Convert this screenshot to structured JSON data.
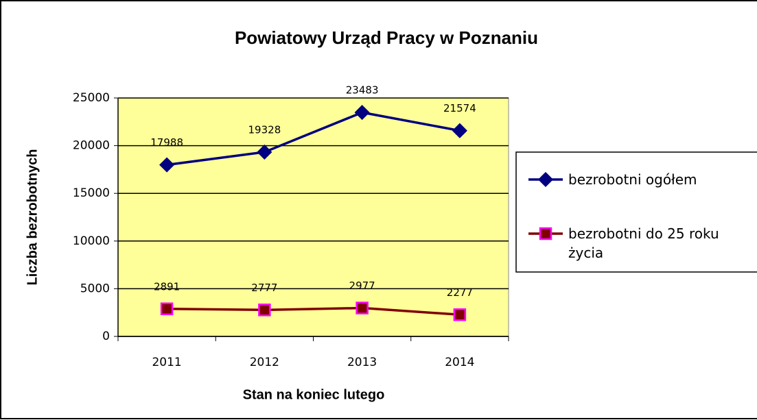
{
  "chart_data": {
    "type": "line",
    "title": "Powiatowy Urząd Pracy w Poznaniu",
    "x_label": "Stan na koniec lutego",
    "y_label": "Liczba bezrobotnych",
    "categories": [
      "2011",
      "2012",
      "2013",
      "2014"
    ],
    "series": [
      {
        "name": "bezrobotni ogółem",
        "color": "#000080",
        "marker": "diamond",
        "marker_fill": "#000080",
        "marker_stroke": "#000080",
        "values": [
          17988,
          19328,
          23483,
          21574
        ]
      },
      {
        "name": "bezrobotni do 25 roku życia",
        "color": "#800000",
        "marker": "square",
        "marker_fill": "#800000",
        "marker_stroke": "#ff00ff",
        "values": [
          2891,
          2777,
          2977,
          2277
        ]
      }
    ],
    "ylim": [
      0,
      25000
    ],
    "yticks": [
      0,
      5000,
      10000,
      15000,
      20000,
      25000
    ],
    "grid": true,
    "plot_background": "#ffff99",
    "legend": "right"
  }
}
